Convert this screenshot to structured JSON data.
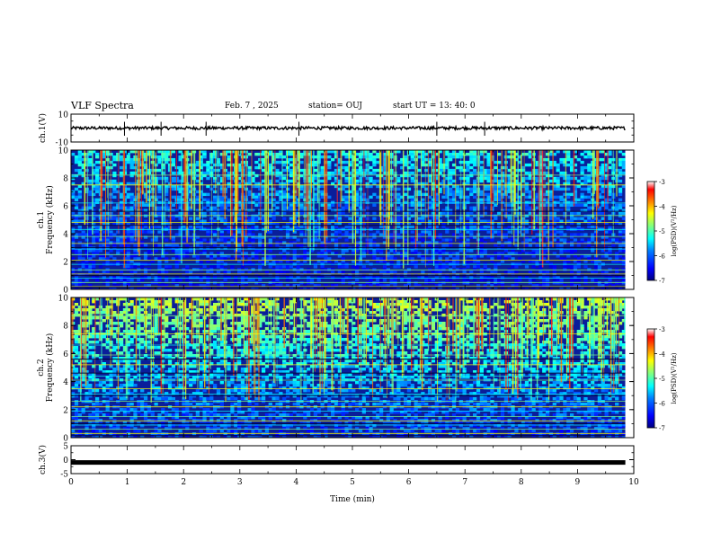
{
  "header": {
    "title": "VLF Spectra",
    "date": "Feb. 7 , 2025",
    "station": "station= OUJ",
    "start": "start  UT  =   13: 40: 0"
  },
  "chart_data": {
    "type": "heatmap",
    "title": "VLF Spectra",
    "xlabel": "Time  (min)",
    "xlim": [
      0,
      10
    ],
    "x_ticks": [
      "0",
      "1",
      "2",
      "3",
      "4",
      "5",
      "6",
      "7",
      "8",
      "9",
      "10"
    ],
    "panels": [
      {
        "name": "ch.1(V)",
        "type": "line",
        "ylabel": "ch.1(V)",
        "ylim": [
          -10,
          10
        ],
        "y_ticks": [
          "10",
          "-10"
        ],
        "baseline": 0,
        "spike_times_min": [
          0.95,
          1.6,
          2.4,
          4.05,
          6.5,
          7.35
        ]
      },
      {
        "name": "ch.1 spectrogram",
        "type": "heatmap",
        "ylabel": "ch.1\nFrequency  (kHz)",
        "ylim": [
          0,
          10
        ],
        "y_ticks": [
          "0",
          "2",
          "4",
          "6",
          "8",
          "10"
        ],
        "colorbar": {
          "label": "log(PSD)(V²/Hz)",
          "range": [
            -7,
            -3
          ],
          "ticks": [
            "-3",
            "-4",
            "-5",
            "-6",
            "-7"
          ]
        }
      },
      {
        "name": "ch.2 spectrogram",
        "type": "heatmap",
        "ylabel": "ch.2\nFrequency  (kHz)",
        "ylim": [
          0,
          10
        ],
        "y_ticks": [
          "0",
          "2",
          "4",
          "6",
          "8",
          "10"
        ],
        "colorbar": {
          "label": "log(PSD)(V²/Hz)",
          "range": [
            -7,
            -3
          ],
          "ticks": [
            "-3",
            "-4",
            "-5",
            "-6",
            "-7"
          ]
        }
      },
      {
        "name": "ch.3(V)",
        "type": "line",
        "ylabel": "ch.3(V)",
        "ylim": [
          -5,
          5
        ],
        "y_ticks": [
          "5",
          "0",
          "-5"
        ],
        "baseline": -1
      }
    ],
    "data_end_min": 9.85,
    "colormap": [
      "#00007f",
      "#0000ff",
      "#0080ff",
      "#00ffff",
      "#80ff80",
      "#ffff00",
      "#ff8000",
      "#ff0000",
      "#ffffff"
    ]
  }
}
